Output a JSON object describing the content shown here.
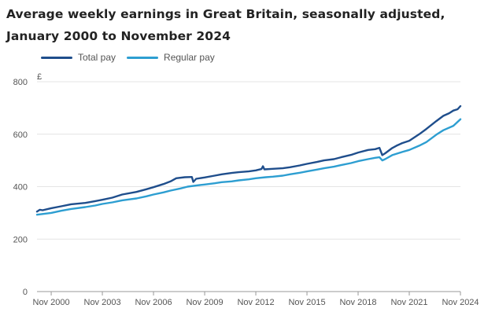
{
  "chart_data": {
    "type": "line",
    "title": "Average weekly earnings in Great Britain, seasonally adjusted, January 2000 to November 2024",
    "ylabel": "£",
    "xlabel": "",
    "ylim": [
      0,
      800
    ],
    "yticks": [
      0,
      200,
      400,
      600,
      800
    ],
    "xlim": [
      "2000-01",
      "2024-11"
    ],
    "xticks": [
      {
        "label": "Nov 2000",
        "date": "2000-11"
      },
      {
        "label": "Nov 2003",
        "date": "2003-11"
      },
      {
        "label": "Nov 2006",
        "date": "2006-11"
      },
      {
        "label": "Nov 2009",
        "date": "2009-11"
      },
      {
        "label": "Nov 2012",
        "date": "2012-11"
      },
      {
        "label": "Nov 2015",
        "date": "2015-11"
      },
      {
        "label": "Nov 2018",
        "date": "2018-11"
      },
      {
        "label": "Nov 2021",
        "date": "2021-11"
      },
      {
        "label": "Nov 2024",
        "date": "2024-11"
      }
    ],
    "grid": "horizontal",
    "legend_position": "top-left",
    "series": [
      {
        "name": "Total pay",
        "color": "#1f4e8c",
        "points": [
          [
            "2000-01",
            305
          ],
          [
            "2000-03",
            312
          ],
          [
            "2000-05",
            310
          ],
          [
            "2000-11",
            318
          ],
          [
            "2001-06",
            325
          ],
          [
            "2002-01",
            333
          ],
          [
            "2002-11",
            338
          ],
          [
            "2003-06",
            345
          ],
          [
            "2003-11",
            350
          ],
          [
            "2004-06",
            358
          ],
          [
            "2005-01",
            370
          ],
          [
            "2005-11",
            380
          ],
          [
            "2006-06",
            390
          ],
          [
            "2006-11",
            398
          ],
          [
            "2007-06",
            410
          ],
          [
            "2007-11",
            420
          ],
          [
            "2008-03",
            432
          ],
          [
            "2008-09",
            436
          ],
          [
            "2009-02",
            437
          ],
          [
            "2009-03",
            418
          ],
          [
            "2009-05",
            430
          ],
          [
            "2009-11",
            435
          ],
          [
            "2010-06",
            442
          ],
          [
            "2010-11",
            447
          ],
          [
            "2011-06",
            452
          ],
          [
            "2011-11",
            455
          ],
          [
            "2012-06",
            458
          ],
          [
            "2012-11",
            462
          ],
          [
            "2013-03",
            467
          ],
          [
            "2013-04",
            478
          ],
          [
            "2013-05",
            466
          ],
          [
            "2013-11",
            468
          ],
          [
            "2014-06",
            470
          ],
          [
            "2014-11",
            474
          ],
          [
            "2015-06",
            481
          ],
          [
            "2015-11",
            487
          ],
          [
            "2016-06",
            494
          ],
          [
            "2016-11",
            500
          ],
          [
            "2017-06",
            505
          ],
          [
            "2017-11",
            512
          ],
          [
            "2018-06",
            521
          ],
          [
            "2018-11",
            530
          ],
          [
            "2019-06",
            540
          ],
          [
            "2019-11",
            543
          ],
          [
            "2020-02",
            548
          ],
          [
            "2020-04",
            520
          ],
          [
            "2020-06",
            527
          ],
          [
            "2020-11",
            547
          ],
          [
            "2021-02",
            556
          ],
          [
            "2021-06",
            566
          ],
          [
            "2021-11",
            575
          ],
          [
            "2022-06",
            600
          ],
          [
            "2022-11",
            620
          ],
          [
            "2023-06",
            650
          ],
          [
            "2023-11",
            670
          ],
          [
            "2024-03",
            680
          ],
          [
            "2024-06",
            690
          ],
          [
            "2024-09",
            695
          ],
          [
            "2024-11",
            707
          ]
        ]
      },
      {
        "name": "Regular pay",
        "color": "#2d9ed1",
        "points": [
          [
            "2000-01",
            293
          ],
          [
            "2000-11",
            300
          ],
          [
            "2001-06",
            308
          ],
          [
            "2002-01",
            315
          ],
          [
            "2002-11",
            322
          ],
          [
            "2003-06",
            328
          ],
          [
            "2003-11",
            334
          ],
          [
            "2004-06",
            340
          ],
          [
            "2005-01",
            348
          ],
          [
            "2005-11",
            355
          ],
          [
            "2006-06",
            363
          ],
          [
            "2006-11",
            370
          ],
          [
            "2007-06",
            378
          ],
          [
            "2007-11",
            385
          ],
          [
            "2008-06",
            393
          ],
          [
            "2008-11",
            400
          ],
          [
            "2009-06",
            405
          ],
          [
            "2009-11",
            408
          ],
          [
            "2010-06",
            413
          ],
          [
            "2010-11",
            417
          ],
          [
            "2011-06",
            420
          ],
          [
            "2011-11",
            424
          ],
          [
            "2012-06",
            428
          ],
          [
            "2012-11",
            432
          ],
          [
            "2013-06",
            436
          ],
          [
            "2013-11",
            438
          ],
          [
            "2014-06",
            442
          ],
          [
            "2014-11",
            447
          ],
          [
            "2015-06",
            453
          ],
          [
            "2015-11",
            458
          ],
          [
            "2016-06",
            465
          ],
          [
            "2016-11",
            470
          ],
          [
            "2017-06",
            476
          ],
          [
            "2017-11",
            482
          ],
          [
            "2018-06",
            490
          ],
          [
            "2018-11",
            497
          ],
          [
            "2019-06",
            505
          ],
          [
            "2019-11",
            510
          ],
          [
            "2020-02",
            512
          ],
          [
            "2020-04",
            500
          ],
          [
            "2020-06",
            505
          ],
          [
            "2020-11",
            520
          ],
          [
            "2021-06",
            532
          ],
          [
            "2021-11",
            540
          ],
          [
            "2022-06",
            556
          ],
          [
            "2022-11",
            570
          ],
          [
            "2023-06",
            598
          ],
          [
            "2023-11",
            615
          ],
          [
            "2024-06",
            632
          ],
          [
            "2024-11",
            657
          ]
        ]
      }
    ]
  }
}
